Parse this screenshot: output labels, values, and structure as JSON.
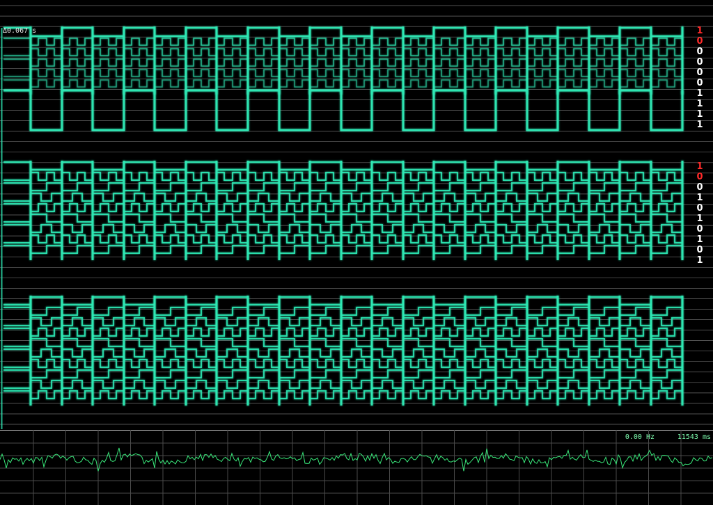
{
  "analyzer": {
    "delta_label": "Δ0.067 s",
    "trace_color": "#2ee8b4",
    "grid_color": "#c8c8c8",
    "groups": [
      {
        "bits": [
          "1",
          "0",
          "0",
          "0",
          "0",
          "0",
          "1",
          "1",
          "1",
          "1"
        ],
        "red": [
          0,
          1
        ]
      },
      {
        "bits": [
          "1",
          "0",
          "0",
          "1",
          "0",
          "1",
          "0",
          "1",
          "0",
          "1"
        ],
        "red": [
          0,
          1
        ]
      }
    ]
  },
  "scope": {
    "frequency": "0.00 Hz",
    "duration": "11543 ms",
    "trace_color": "#39e87a"
  }
}
